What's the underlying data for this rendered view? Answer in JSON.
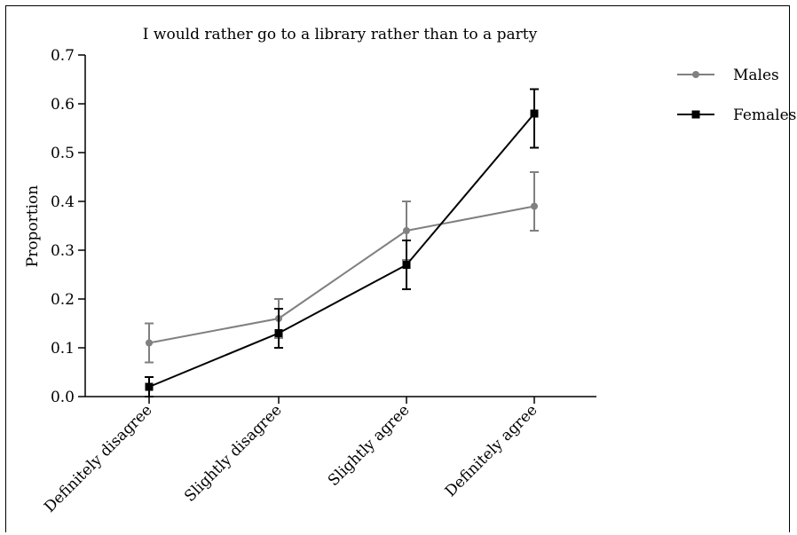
{
  "chart_data": {
    "type": "line",
    "title": "I would rather go to a library rather than to a party",
    "ylabel": "Proportion",
    "xlabel": "",
    "ylim": [
      0.0,
      0.7
    ],
    "yticks": [
      "0.0",
      "0.1",
      "0.2",
      "0.3",
      "0.4",
      "0.5",
      "0.6",
      "0.7"
    ],
    "categories": [
      "Definitely disagree",
      "Slightly disagree",
      "Slightly agree",
      "Definitely agree"
    ],
    "legend_position": "top-right",
    "series": [
      {
        "name": "Males",
        "color": "#808080",
        "marker": "circle",
        "values": [
          0.11,
          0.16,
          0.34,
          0.39
        ],
        "error_low": [
          0.07,
          0.12,
          0.28,
          0.34
        ],
        "error_high": [
          0.15,
          0.2,
          0.4,
          0.46
        ]
      },
      {
        "name": "Females",
        "color": "#000000",
        "marker": "square",
        "values": [
          0.02,
          0.13,
          0.27,
          0.58
        ],
        "error_low": [
          0.0,
          0.1,
          0.22,
          0.51
        ],
        "error_high": [
          0.04,
          0.18,
          0.32,
          0.63
        ]
      }
    ]
  }
}
